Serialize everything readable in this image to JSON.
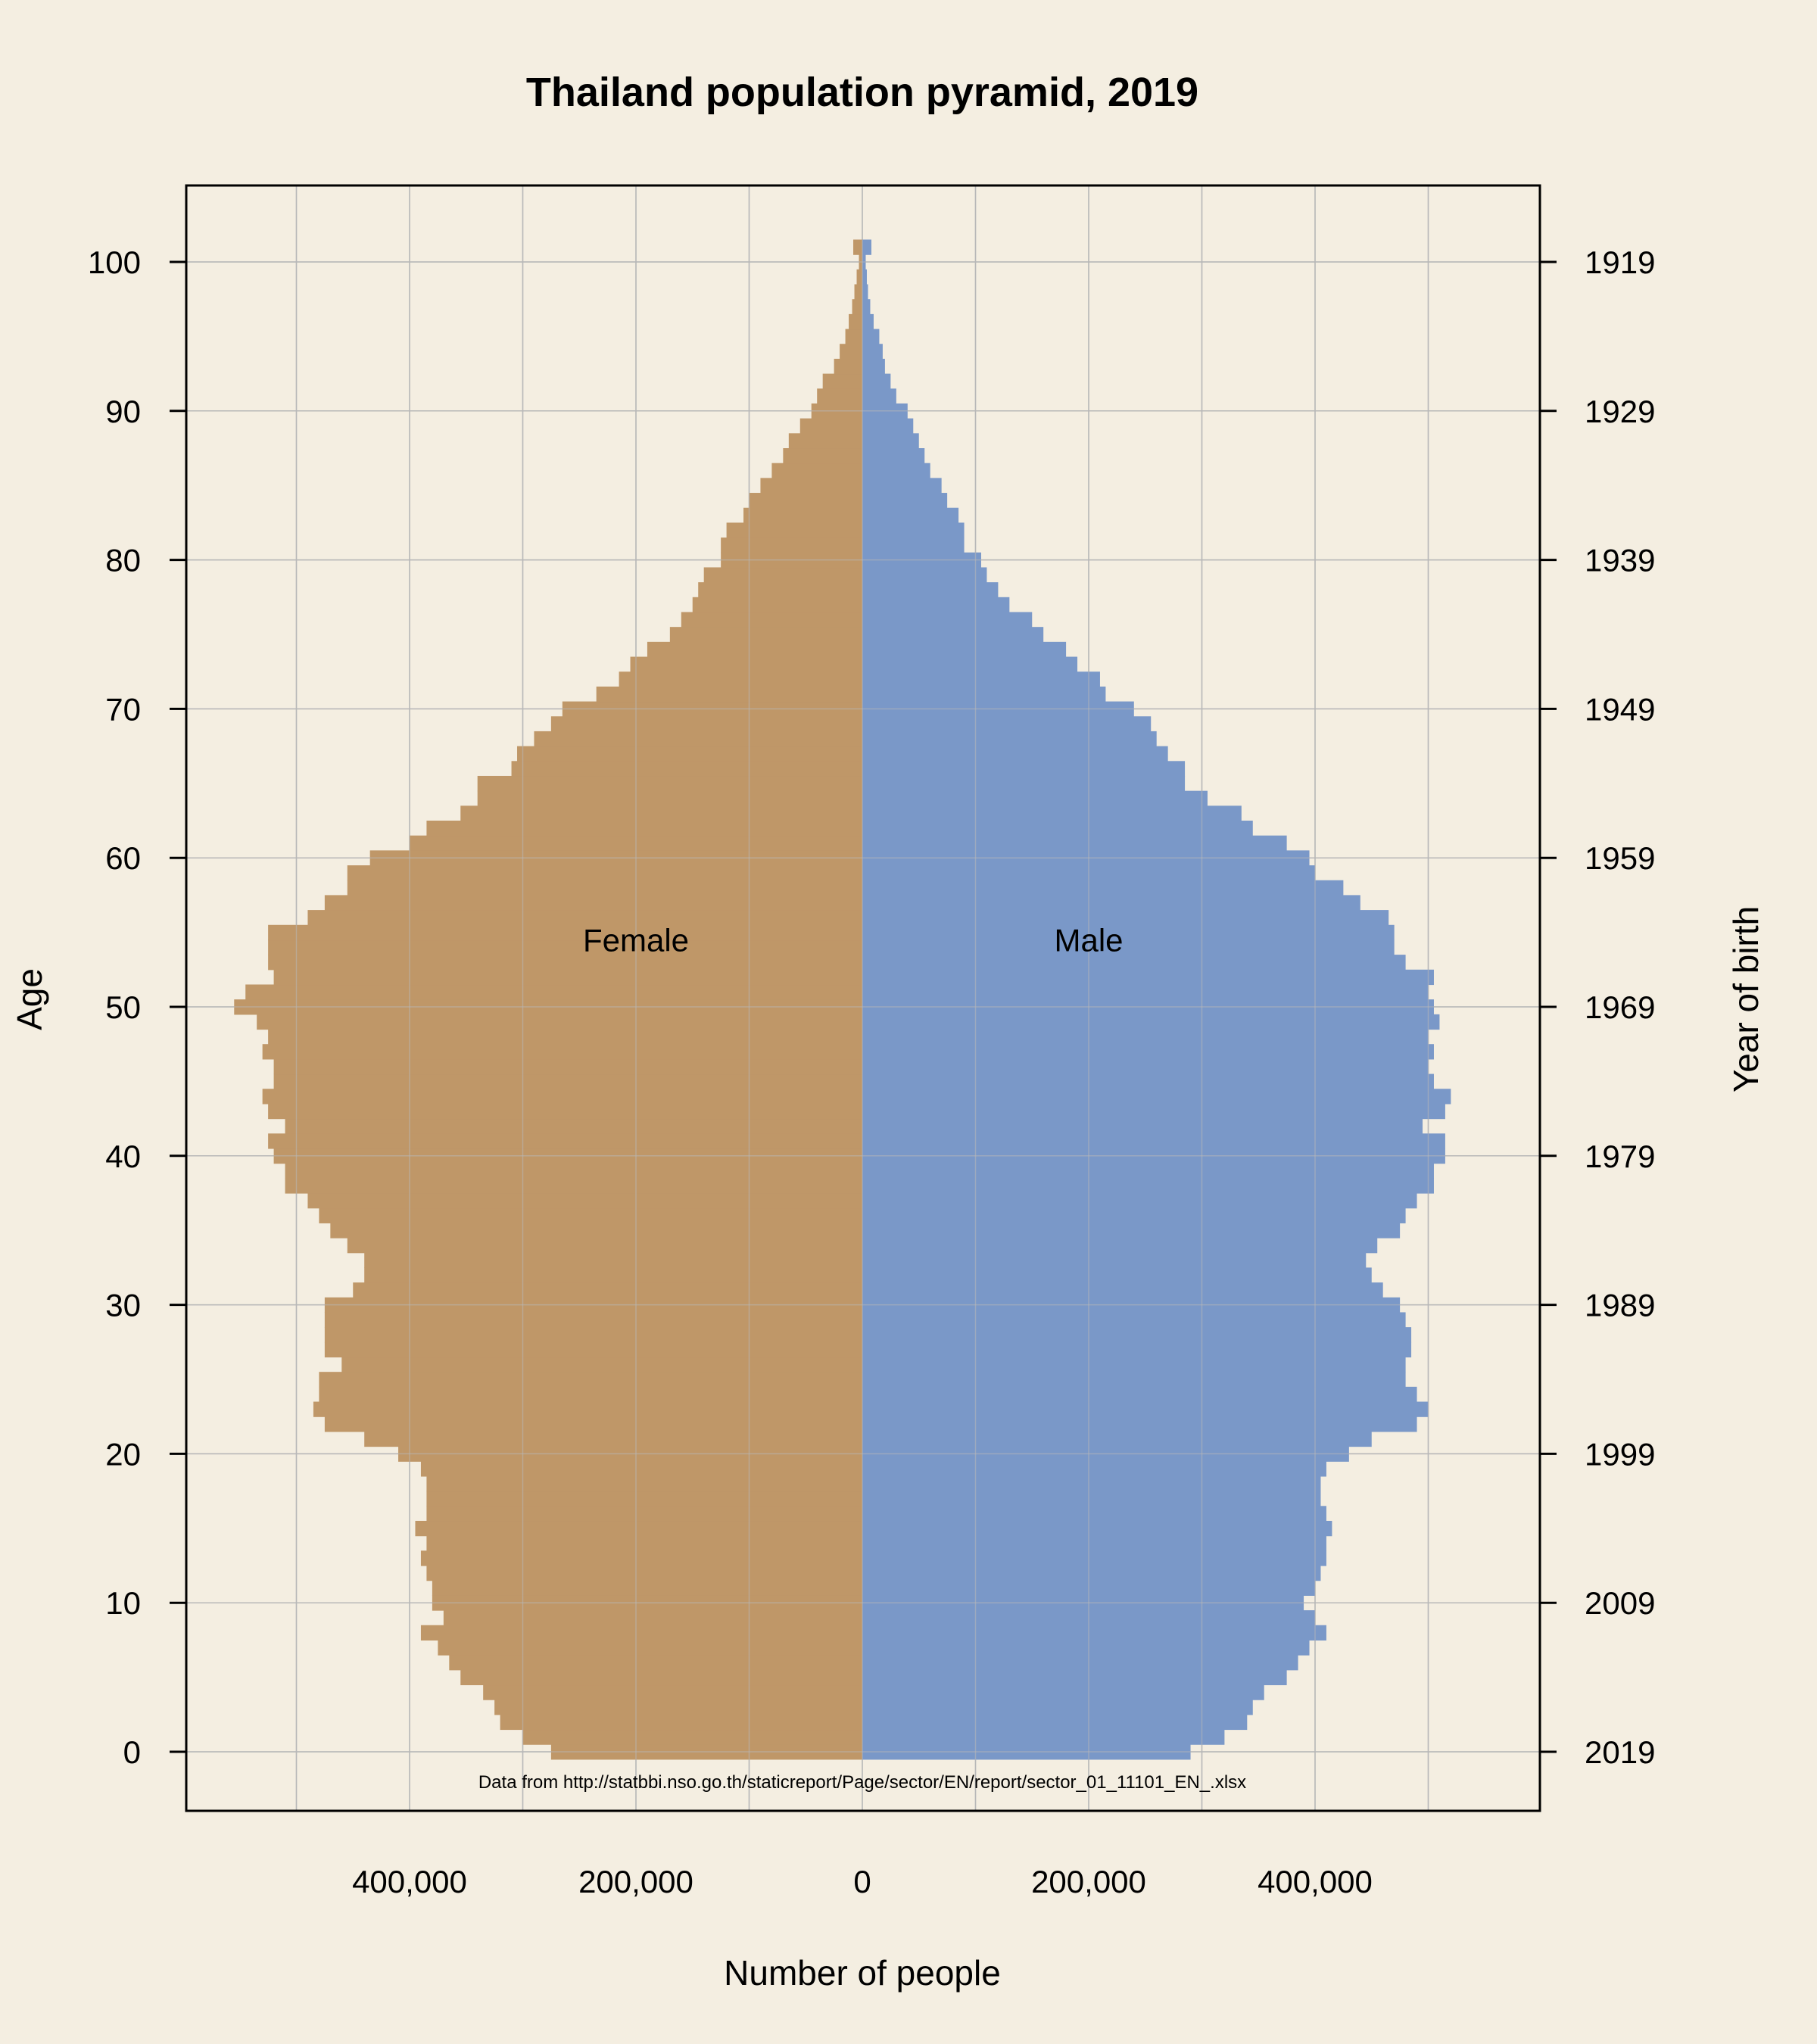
{
  "chart_data": {
    "type": "bar",
    "orientation": "horizontal",
    "layout": "population-pyramid",
    "title": "Thailand population pyramid, 2019",
    "xlabel": "Number of people",
    "ylabel": "Age",
    "y2label": "Year of birth",
    "source_note": "Data from http://statbbi.nso.go.th/staticreport/Page/sector/EN/report/sector_01_11101_EN_.xlsx",
    "xlim": [
      -600000,
      600000
    ],
    "ylim": [
      -4,
      104
    ],
    "x_tick_values": [
      -400000,
      -200000,
      0,
      200000,
      400000
    ],
    "x_tick_labels": [
      "400,000",
      "200,000",
      "0",
      "200,000",
      "400,000"
    ],
    "y_ticks": [
      0,
      10,
      20,
      30,
      40,
      50,
      60,
      70,
      80,
      90,
      100
    ],
    "y2_tick_labels": [
      "2019",
      "2009",
      "1999",
      "1989",
      "1979",
      "1969",
      "1959",
      "1949",
      "1939",
      "1929",
      "1919"
    ],
    "x_grid": [
      -500000,
      -400000,
      -300000,
      -200000,
      -100000,
      0,
      100000,
      200000,
      300000,
      400000,
      500000
    ],
    "y_grid": [
      0,
      10,
      20,
      30,
      40,
      50,
      60,
      70,
      80,
      90,
      100
    ],
    "grid": true,
    "colors": {
      "female": "#bf9768",
      "male": "#7a98c8",
      "background": "#f4eee1",
      "grid": "#b8b8b8"
    },
    "ages": [
      0,
      1,
      2,
      3,
      4,
      5,
      6,
      7,
      8,
      9,
      10,
      11,
      12,
      13,
      14,
      15,
      16,
      17,
      18,
      19,
      20,
      21,
      22,
      23,
      24,
      25,
      26,
      27,
      28,
      29,
      30,
      31,
      32,
      33,
      34,
      35,
      36,
      37,
      38,
      39,
      40,
      41,
      42,
      43,
      44,
      45,
      46,
      47,
      48,
      49,
      50,
      51,
      52,
      53,
      54,
      55,
      56,
      57,
      58,
      59,
      60,
      61,
      62,
      63,
      64,
      65,
      66,
      67,
      68,
      69,
      70,
      71,
      72,
      73,
      74,
      75,
      76,
      77,
      78,
      79,
      80,
      81,
      82,
      83,
      84,
      85,
      86,
      87,
      88,
      89,
      90,
      91,
      92,
      93,
      94,
      95,
      96,
      97,
      98,
      99,
      100,
      101
    ],
    "series": [
      {
        "name": "Female",
        "values": [
          275000,
          300000,
          320000,
          325000,
          335000,
          355000,
          365000,
          375000,
          390000,
          370000,
          380000,
          380000,
          385000,
          390000,
          385000,
          395000,
          385000,
          385000,
          385000,
          390000,
          410000,
          440000,
          475000,
          485000,
          480000,
          480000,
          460000,
          475000,
          475000,
          475000,
          475000,
          450000,
          440000,
          440000,
          455000,
          470000,
          480000,
          490000,
          510000,
          510000,
          520000,
          525000,
          510000,
          525000,
          530000,
          520000,
          520000,
          530000,
          525000,
          535000,
          555000,
          545000,
          520000,
          525000,
          525000,
          525000,
          490000,
          475000,
          455000,
          455000,
          435000,
          400000,
          385000,
          355000,
          340000,
          340000,
          310000,
          305000,
          290000,
          275000,
          265000,
          235000,
          215000,
          205000,
          190000,
          170000,
          160000,
          150000,
          145000,
          140000,
          125000,
          125000,
          120000,
          105000,
          100000,
          90000,
          80000,
          70000,
          65000,
          55000,
          45000,
          40000,
          35000,
          25000,
          20000,
          15000,
          12000,
          9000,
          7000,
          5000,
          3000,
          8000
        ]
      },
      {
        "name": "Male",
        "values": [
          290000,
          320000,
          340000,
          345000,
          355000,
          375000,
          385000,
          395000,
          410000,
          400000,
          390000,
          400000,
          405000,
          410000,
          410000,
          415000,
          410000,
          405000,
          405000,
          410000,
          430000,
          450000,
          490000,
          500000,
          490000,
          480000,
          480000,
          485000,
          485000,
          480000,
          475000,
          460000,
          450000,
          445000,
          455000,
          475000,
          480000,
          490000,
          505000,
          505000,
          515000,
          515000,
          495000,
          515000,
          520000,
          505000,
          500000,
          505000,
          500000,
          510000,
          505000,
          500000,
          505000,
          480000,
          470000,
          470000,
          465000,
          440000,
          425000,
          400000,
          395000,
          375000,
          345000,
          335000,
          305000,
          285000,
          285000,
          270000,
          260000,
          255000,
          240000,
          215000,
          210000,
          190000,
          180000,
          160000,
          150000,
          130000,
          120000,
          110000,
          105000,
          90000,
          90000,
          85000,
          75000,
          70000,
          60000,
          55000,
          50000,
          45000,
          40000,
          30000,
          25000,
          20000,
          18000,
          15000,
          10000,
          7000,
          5000,
          4000,
          3000,
          8000
        ]
      }
    ],
    "annotations": [
      {
        "text": "Female",
        "x": -200000,
        "y": 54.5
      },
      {
        "text": "Male",
        "x": 200000,
        "y": 54.5
      }
    ]
  }
}
